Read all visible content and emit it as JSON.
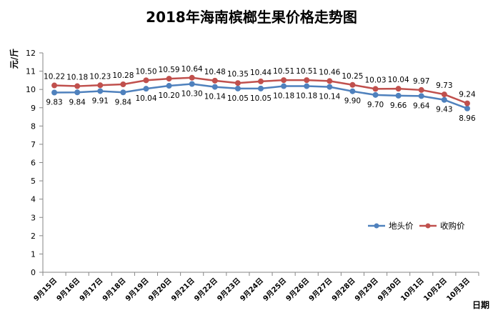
{
  "chart_data": {
    "type": "line",
    "title": "2018年海南槟榔生果价格走势图",
    "xlabel": "日期",
    "ylabel": "元/斤",
    "ylim": [
      0,
      12
    ],
    "yticks": [
      "0",
      "1",
      "2",
      "3",
      "4",
      "5",
      "6",
      "7",
      "8",
      "9",
      "10",
      "11",
      "12"
    ],
    "grid": false,
    "legend_position": "right",
    "categories": [
      "9月15日",
      "9月16日",
      "9月17日",
      "9月18日",
      "9月19日",
      "9月20日",
      "9月21日",
      "9月22日",
      "9月23日",
      "9月24日",
      "9月25日",
      "9月26日",
      "9月27日",
      "9月28日",
      "9月29日",
      "9月30日",
      "10月1日",
      "10月2日",
      "10月3日"
    ],
    "series": [
      {
        "name": "地头价",
        "color": "#4f81bd",
        "labels": [
          "9.83",
          "9.84",
          "9.91",
          "9.84",
          "10.04",
          "10.20",
          "10.30",
          "10.14",
          "10.05",
          "10.05",
          "10.18",
          "10.18",
          "10.14",
          "9.90",
          "9.70",
          "9.66",
          "9.64",
          "9.43",
          "8.96"
        ],
        "values": [
          9.83,
          9.84,
          9.91,
          9.84,
          10.04,
          10.2,
          10.3,
          10.14,
          10.05,
          10.05,
          10.18,
          10.18,
          10.14,
          9.9,
          9.7,
          9.66,
          9.64,
          9.43,
          8.96
        ]
      },
      {
        "name": "收购价",
        "color": "#c0504d",
        "labels": [
          "10.22",
          "10.18",
          "10.23",
          "10.28",
          "10.50",
          "10.59",
          "10.64",
          "10.48",
          "10.35",
          "10.44",
          "10.51",
          "10.51",
          "10.46",
          "10.25",
          "10.03",
          "10.04",
          "9.97",
          "9.73",
          "9.24"
        ],
        "values": [
          10.22,
          10.18,
          10.23,
          10.28,
          10.5,
          10.59,
          10.64,
          10.48,
          10.35,
          10.44,
          10.51,
          10.51,
          10.46,
          10.25,
          10.03,
          10.04,
          9.97,
          9.73,
          9.24
        ]
      }
    ]
  }
}
